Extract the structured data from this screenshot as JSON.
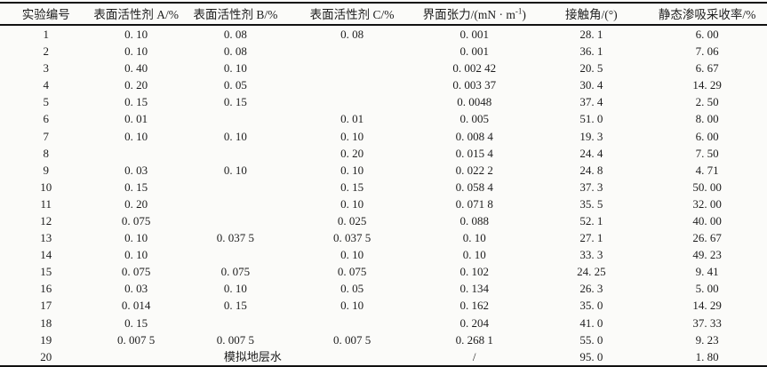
{
  "table": {
    "columns": [
      {
        "key": "experiment-no",
        "label": "实验编号"
      },
      {
        "key": "surfactant-a",
        "label": "表面活性剂 A/%"
      },
      {
        "key": "surfactant-b",
        "label": "表面活性剂 B/%"
      },
      {
        "key": "surfactant-c",
        "label": "表面活性剂 C/%"
      },
      {
        "key": "interfacial-tension",
        "label_prefix": "界面张力/(mN · m",
        "label_sup": "-1",
        "label_suffix": ")"
      },
      {
        "key": "contact-angle",
        "label": "接触角/(°)"
      },
      {
        "key": "static-imbibition-recovery",
        "label": "静态渗吸采收率/%"
      }
    ],
    "rows": [
      [
        "1",
        "0. 10",
        "0. 08",
        "0. 08",
        "0. 001",
        "28. 1",
        "6. 00"
      ],
      [
        "2",
        "0. 10",
        "0. 08",
        "",
        "0. 001",
        "36. 1",
        "7. 06"
      ],
      [
        "3",
        "0. 40",
        "0. 10",
        "",
        "0. 002 42",
        "20. 5",
        "6. 67"
      ],
      [
        "4",
        "0. 20",
        "0. 05",
        "",
        "0. 003 37",
        "30. 4",
        "14. 29"
      ],
      [
        "5",
        "0. 15",
        "0. 15",
        "",
        "0. 0048",
        "37. 4",
        "2. 50"
      ],
      [
        "6",
        "0. 01",
        "",
        "0. 01",
        "0. 005",
        "51. 0",
        "8. 00"
      ],
      [
        "7",
        "0. 10",
        "0. 10",
        "0. 10",
        "0. 008 4",
        "19. 3",
        "6. 00"
      ],
      [
        "8",
        "",
        "",
        "0. 20",
        "0. 015 4",
        "24. 4",
        "7. 50"
      ],
      [
        "9",
        "0. 03",
        "0. 10",
        "0. 10",
        "0. 022 2",
        "24. 8",
        "4. 71"
      ],
      [
        "10",
        "0. 15",
        "",
        "0. 15",
        "0. 058 4",
        "37. 3",
        "50. 00"
      ],
      [
        "11",
        "0. 20",
        "",
        "0. 10",
        "0. 071 8",
        "35. 5",
        "32. 00"
      ],
      [
        "12",
        "0. 075",
        "",
        "0. 025",
        "0. 088",
        "52. 1",
        "40. 00"
      ],
      [
        "13",
        "0. 10",
        "0. 037 5",
        "0. 037 5",
        "0. 10",
        "27. 1",
        "26. 67"
      ],
      [
        "14",
        "0. 10",
        "",
        "0. 10",
        "0. 10",
        "33. 3",
        "49. 23"
      ],
      [
        "15",
        "0. 075",
        "0. 075",
        "0. 075",
        "0. 102",
        "24. 25",
        "9. 41"
      ],
      [
        "16",
        "0. 03",
        "0. 10",
        "0. 05",
        "0. 134",
        "26. 3",
        "5. 00"
      ],
      [
        "17",
        "0. 014",
        "0. 15",
        "0. 10",
        "0. 162",
        "35. 0",
        "14. 29"
      ],
      [
        "18",
        "0. 15",
        "",
        "",
        "0. 204",
        "41. 0",
        "37. 33"
      ],
      [
        "19",
        "0. 007 5",
        "0. 007 5",
        "0. 007 5",
        "0. 268 1",
        "55. 0",
        "9. 23"
      ],
      [
        "20",
        {
          "text": "模拟地层水",
          "colspan": 3
        },
        "/",
        "95. 0",
        "1. 80"
      ]
    ],
    "colors": {
      "paper_background": "#fbfbf9",
      "rule_color": "#111111",
      "text_color": "#1d1d1d"
    }
  }
}
